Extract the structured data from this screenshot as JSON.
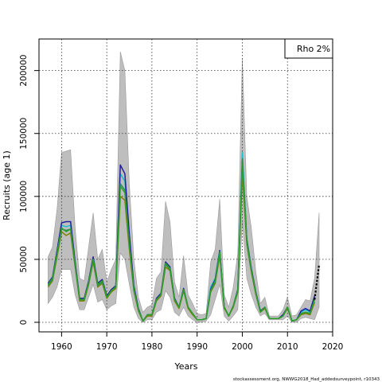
{
  "chart_data": {
    "type": "line",
    "title": "",
    "xlabel": "Years",
    "ylabel": "Recruits (age 1)",
    "xlim": [
      1955,
      2020
    ],
    "ylim": [
      0,
      220000
    ],
    "x_ticks": [
      1960,
      1970,
      1980,
      1990,
      2000,
      2010,
      2020
    ],
    "y_ticks": [
      0,
      50000,
      100000,
      150000,
      200000
    ],
    "grid": true,
    "legend_position": "top-right",
    "legend_text": "Rho 2%",
    "footer_text": "stockassessment.org, NWWG2018_Had_addedsurveypoint, r10343",
    "colors": {
      "band": "#bebebe",
      "band_edge": "#9a9a9a",
      "grid": "#333333",
      "series": [
        "#2ca02c",
        "#808000",
        "#1f1f9f",
        "#17becf",
        "#2e8b57"
      ],
      "projection": "#000000"
    },
    "confidence_band": {
      "x": [
        1957,
        1958,
        1959,
        1960,
        1961,
        1962,
        1963,
        1964,
        1965,
        1966,
        1967,
        1968,
        1969,
        1970,
        1971,
        1972,
        1973,
        1974,
        1975,
        1976,
        1977,
        1978,
        1979,
        1980,
        1981,
        1982,
        1983,
        1984,
        1985,
        1986,
        1987,
        1988,
        1989,
        1990,
        1991,
        1992,
        1993,
        1994,
        1995,
        1996,
        1997,
        1998,
        1999,
        2000,
        2001,
        2002,
        2003,
        2004,
        2005,
        2006,
        2007,
        2008,
        2009,
        2010,
        2011,
        2012,
        2013,
        2014,
        2015,
        2016,
        2017
      ],
      "lower": [
        15000,
        20000,
        28000,
        42000,
        42000,
        42000,
        22000,
        10000,
        10000,
        20000,
        30000,
        16000,
        18000,
        10000,
        13000,
        15000,
        55000,
        50000,
        30000,
        12000,
        3000,
        0,
        2000,
        2000,
        8000,
        10000,
        25000,
        20000,
        8000,
        5000,
        12000,
        5000,
        2000,
        0,
        0,
        1000,
        6000,
        18000,
        30000,
        5000,
        1000,
        5000,
        10000,
        80000,
        35000,
        22000,
        12000,
        5000,
        7000,
        2000,
        2000,
        2000,
        2000,
        5000,
        0,
        0,
        3000,
        4000,
        3000,
        2000,
        12000
      ],
      "upper": [
        52000,
        60000,
        90000,
        135000,
        136000,
        137000,
        75000,
        35000,
        33000,
        60000,
        87000,
        50000,
        58000,
        32000,
        42000,
        50000,
        215000,
        200000,
        110000,
        50000,
        20000,
        8000,
        12000,
        14000,
        35000,
        40000,
        96000,
        80000,
        32000,
        20000,
        53000,
        22000,
        15000,
        7000,
        6000,
        7000,
        48000,
        58000,
        98000,
        22000,
        12000,
        28000,
        55000,
        210000,
        100000,
        75000,
        40000,
        15000,
        20000,
        5000,
        5000,
        5000,
        10000,
        20000,
        5000,
        6000,
        12000,
        18000,
        17000,
        35000,
        87000
      ]
    },
    "series": [
      {
        "x": [
          1957,
          1958,
          1959,
          1960,
          1961,
          1962,
          1963,
          1964,
          1965,
          1966,
          1967,
          1968,
          1969,
          1970,
          1971,
          1972,
          1973,
          1974,
          1975,
          1976,
          1977,
          1978,
          1979,
          1980,
          1981,
          1982,
          1983,
          1984,
          1985,
          1986,
          1987,
          1988,
          1989,
          1990,
          1991,
          1992,
          1993,
          1994,
          1995,
          1996,
          1997,
          1998,
          1999,
          2000,
          2001,
          2002,
          2003,
          2004,
          2005,
          2006,
          2007,
          2008,
          2009,
          2010,
          2011,
          2012,
          2013,
          2014,
          2015,
          2016
        ],
        "values": [
          30000,
          35000,
          55000,
          75000,
          72000,
          74000,
          46000,
          18000,
          18000,
          32000,
          50000,
          30000,
          33000,
          20000,
          25000,
          28000,
          108000,
          103000,
          62000,
          27000,
          10000,
          1000,
          6000,
          6000,
          18000,
          22000,
          47000,
          43000,
          18000,
          12000,
          26000,
          12000,
          7000,
          2000,
          2000,
          3000,
          25000,
          33000,
          56000,
          12000,
          5000,
          13000,
          25000,
          125000,
          65000,
          42000,
          23000,
          8000,
          12000,
          3000,
          3000,
          3000,
          5000,
          12000,
          1000,
          2000,
          7000,
          8000,
          7000,
          18000
        ]
      },
      {
        "x": [
          1957,
          1958,
          1959,
          1960,
          1961,
          1962,
          1963,
          1964,
          1965,
          1966,
          1967,
          1968,
          1969,
          1970,
          1971,
          1972,
          1973,
          1974,
          1975,
          1976,
          1977,
          1978,
          1979,
          1980,
          1981,
          1982,
          1983,
          1984,
          1985,
          1986,
          1987,
          1988,
          1989,
          1990,
          1991,
          1992,
          1993,
          1994,
          1995,
          1996,
          1997,
          1998,
          1999,
          2000,
          2001,
          2002,
          2003,
          2004,
          2005,
          2006,
          2007,
          2008,
          2009,
          2010,
          2011,
          2012,
          2013,
          2014,
          2015,
          2016
        ],
        "values": [
          28000,
          33000,
          52000,
          72000,
          69000,
          71000,
          44000,
          17000,
          17000,
          30000,
          48000,
          28000,
          31000,
          19000,
          24000,
          27000,
          100000,
          97000,
          58000,
          25000,
          9000,
          1000,
          5000,
          5000,
          17000,
          21000,
          44000,
          41000,
          17000,
          11000,
          25000,
          11000,
          6000,
          2000,
          2000,
          3000,
          24000,
          31000,
          53000,
          11000,
          5000,
          12000,
          24000,
          118000,
          62000,
          40000,
          22000,
          8000,
          11000,
          3000,
          3000,
          3000,
          5000,
          11000,
          1000,
          2000,
          6000,
          7000,
          6000,
          16000
        ]
      },
      {
        "x": [
          1957,
          1958,
          1959,
          1960,
          1961,
          1962,
          1963,
          1964,
          1965,
          1966,
          1967,
          1968,
          1969,
          1970,
          1971,
          1972,
          1973,
          1974,
          1975,
          1976,
          1977,
          1978,
          1979,
          1980,
          1981,
          1982,
          1983,
          1984,
          1985,
          1986,
          1987,
          1988,
          1989,
          1990,
          1991,
          1992,
          1993,
          1994,
          1995,
          1996,
          1997,
          1998,
          1999,
          2000,
          2001,
          2002,
          2003,
          2004,
          2005,
          2006,
          2007,
          2008,
          2009,
          2010,
          2011,
          2012,
          2013,
          2014,
          2015,
          2016
        ],
        "values": [
          31000,
          36000,
          57000,
          79000,
          80000,
          80000,
          48000,
          19000,
          19000,
          33000,
          52000,
          31000,
          34000,
          21000,
          26000,
          29000,
          125000,
          118000,
          70000,
          29000,
          11000,
          1000,
          6000,
          6000,
          19000,
          23000,
          48000,
          44000,
          19000,
          12000,
          27000,
          12000,
          7000,
          2000,
          2000,
          3000,
          26000,
          34000,
          57000,
          12000,
          5000,
          13000,
          26000,
          128000,
          66000,
          43000,
          24000,
          9000,
          12000,
          3000,
          3000,
          3000,
          6000,
          12000,
          1000,
          2000,
          9000,
          11000,
          9000,
          21000
        ]
      },
      {
        "x": [
          1957,
          1958,
          1959,
          1960,
          1961,
          1962,
          1963,
          1964,
          1965,
          1966,
          1967,
          1968,
          1969,
          1970,
          1971,
          1972,
          1973,
          1974,
          1975,
          1976,
          1977,
          1978,
          1979,
          1980,
          1981,
          1982,
          1983,
          1984,
          1985,
          1986,
          1987,
          1988,
          1989,
          1990,
          1991,
          1992,
          1993,
          1994,
          1995,
          1996,
          1997,
          1998,
          1999,
          2000,
          2001,
          2002,
          2003,
          2004,
          2005,
          2006,
          2007,
          2008,
          2009,
          2010,
          2011,
          2012,
          2013,
          2014,
          2015,
          2016
        ],
        "values": [
          30000,
          35000,
          56000,
          77000,
          76000,
          77000,
          47000,
          18000,
          18000,
          32000,
          51000,
          30000,
          33000,
          20000,
          25000,
          28000,
          118000,
          112000,
          66000,
          28000,
          10000,
          1000,
          6000,
          6000,
          18000,
          22000,
          47000,
          43000,
          18000,
          12000,
          26000,
          12000,
          7000,
          2000,
          2000,
          3000,
          28000,
          35000,
          57000,
          12000,
          5000,
          13000,
          26000,
          135000,
          67000,
          42000,
          23000,
          8000,
          12000,
          3000,
          3000,
          3000,
          5000,
          12000,
          1000,
          2000,
          8000,
          10000,
          8000,
          20000
        ]
      },
      {
        "x": [
          1957,
          1958,
          1959,
          1960,
          1961,
          1962,
          1963,
          1964,
          1965,
          1966,
          1967,
          1968,
          1969,
          1970,
          1971,
          1972,
          1973,
          1974,
          1975,
          1976,
          1977,
          1978,
          1979,
          1980,
          1981,
          1982,
          1983,
          1984,
          1985,
          1986,
          1987,
          1988,
          1989,
          1990,
          1991,
          1992,
          1993,
          1994,
          1995,
          1996,
          1997,
          1998,
          1999,
          2000,
          2001,
          2002,
          2003,
          2004,
          2005,
          2006,
          2007,
          2008,
          2009,
          2010,
          2011,
          2012,
          2013,
          2014,
          2015,
          2016
        ],
        "values": [
          29000,
          34000,
          54000,
          74000,
          73000,
          74000,
          45000,
          18000,
          18000,
          31000,
          50000,
          29000,
          32000,
          20000,
          25000,
          28000,
          110000,
          105000,
          62000,
          26000,
          10000,
          1000,
          6000,
          6000,
          18000,
          22000,
          46000,
          42000,
          18000,
          12000,
          26000,
          12000,
          7000,
          2000,
          2000,
          3000,
          25000,
          32000,
          55000,
          12000,
          5000,
          13000,
          25000,
          130000,
          64000,
          41000,
          23000,
          8000,
          12000,
          3000,
          3000,
          3000,
          5000,
          12000,
          1000,
          2000,
          7000,
          8000,
          7000,
          18000
        ]
      }
    ],
    "projection": {
      "x": [
        2016,
        2017
      ],
      "values": [
        18000,
        46000
      ]
    }
  }
}
